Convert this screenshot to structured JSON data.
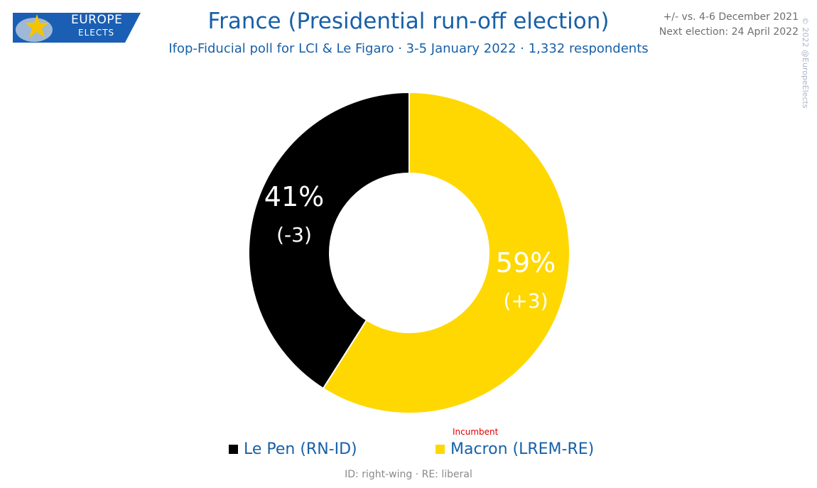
{
  "logo": {
    "line1": "EUROPE",
    "line2": "ELECTS"
  },
  "header": {
    "title": "France (Presidential run-off election)",
    "subtitle": "Ifop-Fiducial poll for LCI & Le Figaro · 3-5 January 2022 · 1,332 respondents",
    "comparison": "+/- vs. 4-6 December 2021",
    "next_election": "Next election: 24 April 2022",
    "copyright": "© 2022 @EuropeElects"
  },
  "chart_data": {
    "type": "pie",
    "title": "France (Presidential run-off election)",
    "slices": [
      {
        "name": "Macron (LREM-RE)",
        "value": 59,
        "label": "59%",
        "change": "(+3)",
        "color": "#fed800"
      },
      {
        "name": "Le Pen (RN-ID)",
        "value": 41,
        "label": "41%",
        "change": "(-3)",
        "color": "#000000"
      }
    ],
    "legend": "bottom"
  },
  "legend": {
    "items": [
      {
        "label": "Le Pen (RN-ID)",
        "color": "#000000"
      },
      {
        "label": "Macron (LREM-RE)",
        "color": "#fed800"
      }
    ],
    "incumbent_note": "Incumbent"
  },
  "footnote": "ID: right-wing · RE: liberal",
  "colors": {
    "brand_blue": "#1760a8",
    "logo_blue": "#1a5fb4",
    "logo_star": "#f5c400"
  }
}
